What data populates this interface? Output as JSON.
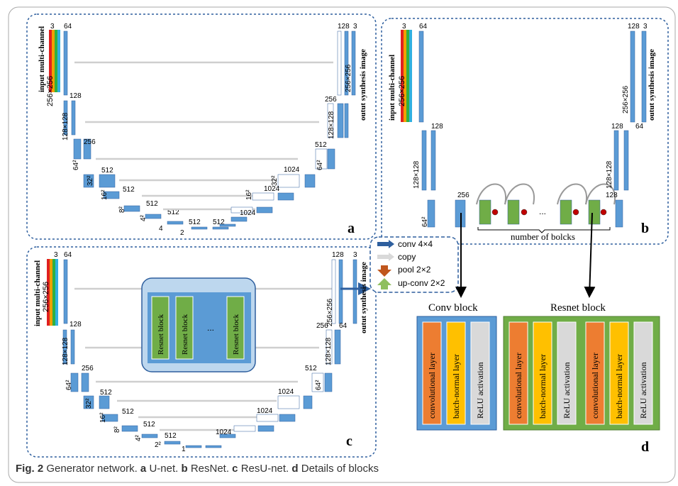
{
  "caption": {
    "fig_label": "Fig. 2",
    "text": "Generator network.",
    "parts": [
      {
        "letter": "a",
        "text": "U-net."
      },
      {
        "letter": "b",
        "text": "ResNet."
      },
      {
        "letter": "c",
        "text": "ResU-net."
      },
      {
        "letter": "d",
        "text": "Details of blocks"
      }
    ]
  },
  "panel_a": {
    "letter": "a",
    "input_label_1": "input multi-channel",
    "input_label_2": "256×256",
    "output_label": "outut synthesis image",
    "channels_in": "3",
    "ch_64": "64",
    "ch_128": "128",
    "ch_256": "256",
    "ch_512": "512",
    "ch_1024": "1024",
    "out_3": "3",
    "size_256": "256×256",
    "size_128": "128×128",
    "size_64": "64²",
    "size_32": "32²",
    "size_16": "16²",
    "size_8": "8²",
    "size_4": "4²",
    "size_4b": "4",
    "size_2": "2"
  },
  "panel_b": {
    "letter": "b",
    "input_label_1": "input multi-channel",
    "input_label_2": "256×256",
    "output_label": "outut synthesis image",
    "channels_in": "3",
    "ch_64": "64",
    "ch_128": "128",
    "ch_256": "256",
    "out_3": "3",
    "size_256": "256×256",
    "size_128": "128×128",
    "size_64": "64²",
    "ellipsis": "...",
    "blocks_label": "number of bolcks"
  },
  "panel_c": {
    "letter": "c",
    "input_label_1": "input multi-channel",
    "input_label_2": "256×256",
    "output_label": "outut synthesis image",
    "channels_in": "3",
    "ch_64": "64",
    "ch_128": "128",
    "ch_256": "256",
    "ch_512": "512",
    "ch_1024": "1024",
    "out_3": "3",
    "size_256": "256×256",
    "size_128": "128×128",
    "size_64": "64²",
    "size_32": "32²",
    "size_16": "16²",
    "size_8": "8²",
    "size_4": "4²",
    "size_2": "2²",
    "size_1": "1",
    "resnet_block": "Resnet block",
    "ellipsis": "..."
  },
  "legend": {
    "conv": "conv 4×4",
    "copy": "copy",
    "pool": "pool 2×2",
    "upconv": "up-conv 2×2",
    "colors": {
      "conv": "#2e5f9e",
      "copy": "#d9d9d9",
      "pool": "#c0561c",
      "upconv": "#8fbf5f"
    }
  },
  "panel_d": {
    "letter": "d",
    "conv_block_title": "Conv block",
    "resnet_block_title": "Resnet block",
    "conv_layer": "convolutional layer",
    "bn_layer": "batch-normal layer",
    "relu": "ReLU activation",
    "colors": {
      "conv": "#ed7d31",
      "bn": "#ffc000",
      "relu": "#d9d9d9",
      "conv_bg": "#5b9bd5",
      "resnet_bg": "#70ad47"
    }
  },
  "colors": {
    "layer": "#5b9bd5",
    "layer_edge": "#2e5f9e",
    "panel_border": "#2e5f9e",
    "green_block": "#70ad47"
  }
}
